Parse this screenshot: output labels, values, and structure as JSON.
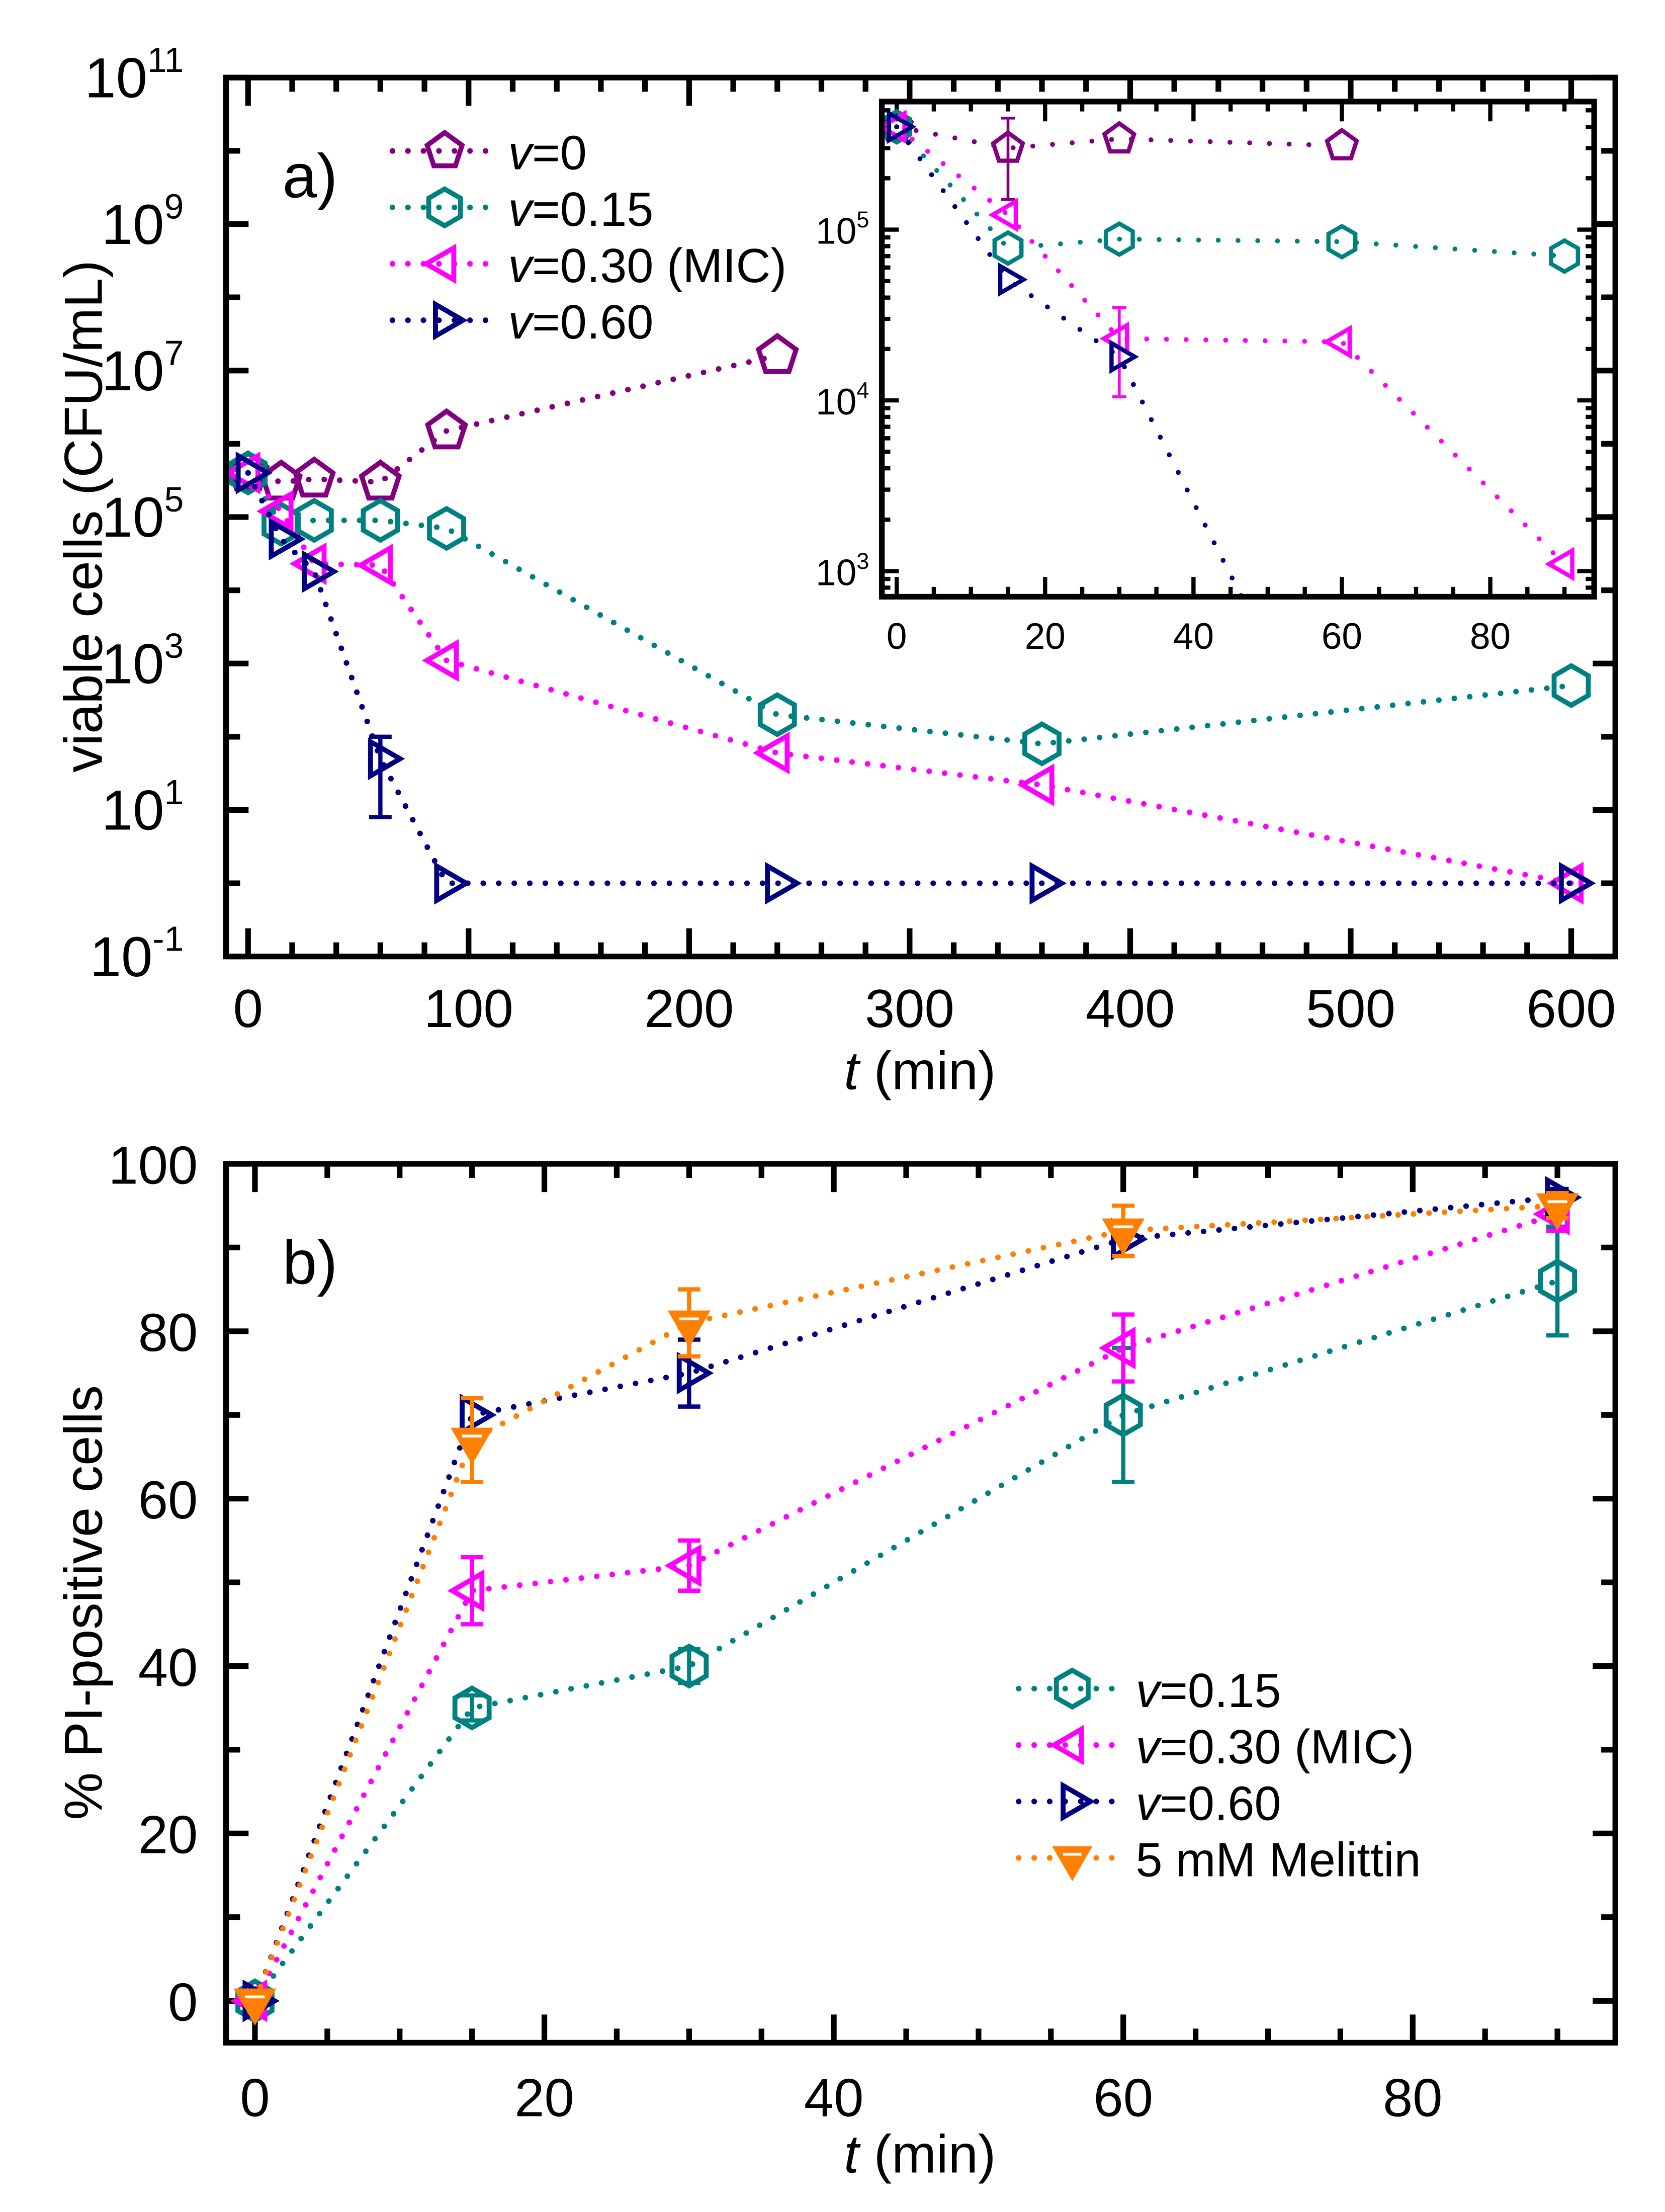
{
  "colors": {
    "v0": "#800080",
    "v015": "#008080",
    "v030": "#FF00FF",
    "v060": "#000080",
    "melittin": "#FF8000"
  },
  "chart_data": [
    {
      "type": "scatter",
      "panel_label": "a)",
      "xlabel_italic": "t",
      "xlabel_rest": " (min)",
      "ylabel": "viable cells (CFU/mL)",
      "yscale": "log",
      "xlim": [
        -10,
        620
      ],
      "ylim_log10": [
        -1,
        11
      ],
      "xticks": [
        0,
        100,
        200,
        300,
        400,
        500,
        600
      ],
      "yticks_exponent": [
        -1,
        1,
        3,
        5,
        7,
        9,
        11
      ],
      "legend_position": "top-left",
      "series": [
        {
          "name_italic": "v",
          "name_rest": "=0",
          "color": "#800080",
          "marker": "pentagon",
          "x": [
            0,
            15,
            30,
            60,
            90,
            240
          ],
          "y": [
            400000,
            300000,
            330000,
            300000,
            1500000,
            16000000
          ]
        },
        {
          "name_italic": "v",
          "name_rest": "=0.15",
          "color": "#008080",
          "marker": "hexagon",
          "x": [
            0,
            15,
            30,
            60,
            90,
            240,
            360,
            600
          ],
          "y": [
            400000,
            80000,
            90000,
            90000,
            70000,
            200,
            80,
            500
          ]
        },
        {
          "name_italic": "v",
          "name_rest": "=0.30 (MIC)",
          "color": "#FF00FF",
          "marker": "triangle-left",
          "x": [
            0,
            15,
            30,
            60,
            90,
            240,
            360,
            600
          ],
          "y": [
            400000,
            120000,
            23000,
            22000,
            1100,
            60,
            22,
            1
          ]
        },
        {
          "name_italic": "v",
          "name_rest": "=0.60",
          "color": "#000080",
          "marker": "triangle-right",
          "x": [
            0,
            15,
            30,
            60,
            90,
            240,
            360,
            600
          ],
          "y": [
            400000,
            50000,
            18000,
            50,
            1,
            1,
            1,
            1
          ],
          "error_bars": [
            {
              "x": 60,
              "low": 8,
              "high": 100
            }
          ]
        }
      ],
      "inset": {
        "xlim": [
          -2,
          94
        ],
        "ylim_log10": [
          2.85,
          5.75
        ],
        "xticks": [
          0,
          20,
          40,
          60,
          80
        ],
        "yticks_exponent": [
          3,
          4,
          5
        ],
        "series": [
          {
            "color": "#800080",
            "marker": "pentagon",
            "x": [
              0,
              15,
              30,
              60
            ],
            "y": [
              400000,
              300000,
              340000,
              310000
            ],
            "error_bars": [
              {
                "x": 15,
                "low": 150000,
                "high": 450000
              }
            ]
          },
          {
            "color": "#008080",
            "marker": "hexagon",
            "x": [
              0,
              15,
              30,
              60,
              90
            ],
            "y": [
              400000,
              78000,
              88000,
              85000,
              70000
            ]
          },
          {
            "color": "#FF00FF",
            "marker": "triangle-left",
            "x": [
              0,
              15,
              30,
              60,
              90
            ],
            "y": [
              400000,
              122000,
              23000,
              22000,
              1100
            ],
            "error_bars": [
              {
                "x": 30,
                "low": 10500,
                "high": 35000
              }
            ]
          },
          {
            "color": "#000080",
            "marker": "triangle-right",
            "x": [
              0,
              15,
              30,
              60
            ],
            "y": [
              400000,
              51000,
              18000,
              50
            ]
          }
        ]
      }
    },
    {
      "type": "scatter",
      "panel_label": "b)",
      "xlabel_italic": "t",
      "xlabel_rest": " (min)",
      "ylabel": "% PI-positive cells",
      "xlim": [
        -2,
        94
      ],
      "ylim": [
        -5,
        100
      ],
      "xticks": [
        0,
        20,
        40,
        60,
        80
      ],
      "yticks": [
        0,
        20,
        40,
        60,
        80,
        100
      ],
      "legend_position": "bottom-right",
      "series": [
        {
          "name_italic": "v",
          "name_rest": "=0.15",
          "color": "#008080",
          "marker": "hexagon",
          "x": [
            0,
            15,
            30,
            60,
            90
          ],
          "y": [
            0,
            35,
            40,
            70,
            86
          ],
          "err": [
            0.5,
            1.5,
            2,
            8,
            6.5
          ]
        },
        {
          "name_italic": "v",
          "name_rest": "=0.30 (MIC)",
          "color": "#FF00FF",
          "marker": "triangle-left",
          "x": [
            0,
            15,
            30,
            60,
            90
          ],
          "y": [
            0,
            49,
            52,
            78,
            94
          ],
          "err": [
            0.5,
            4,
            3,
            4,
            2
          ]
        },
        {
          "name_italic": "v",
          "name_rest": "=0.60",
          "color": "#000080",
          "marker": "triangle-right",
          "x": [
            0,
            15,
            30,
            60,
            90
          ],
          "y": [
            0,
            70,
            75,
            91,
            96
          ],
          "err": [
            0.5,
            2,
            4,
            2,
            1
          ]
        },
        {
          "name_italic": "",
          "name_rest": "5 mM Melittin",
          "color": "#FF8000",
          "marker": "triangle-down-filled",
          "x": [
            0,
            15,
            30,
            60,
            90
          ],
          "y": [
            0,
            67,
            81,
            92,
            95
          ],
          "err": [
            0.5,
            5,
            4,
            3,
            1.5
          ]
        }
      ]
    }
  ]
}
